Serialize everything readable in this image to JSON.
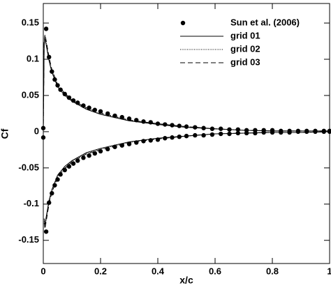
{
  "chart_data": {
    "type": "line",
    "x_label": "x/c",
    "y_label": "Cf",
    "xlim": [
      0,
      1
    ],
    "ylim": [
      -0.182,
      0.177
    ],
    "xticks": [
      0,
      0.2,
      0.4,
      0.6,
      0.8,
      1
    ],
    "yticks": [
      -0.15,
      -0.1,
      -0.05,
      0,
      0.05,
      0.1,
      0.15
    ],
    "legend": "top-right",
    "series": [
      {
        "name": "Sun et al. (2006)",
        "style": "markers",
        "color": "#000000",
        "x": [
          0,
          0.01,
          0.02,
          0.03,
          0.04,
          0.05,
          0.06,
          0.075,
          0.09,
          0.105,
          0.12,
          0.14,
          0.16,
          0.18,
          0.2,
          0.225,
          0.25,
          0.275,
          0.3,
          0.325,
          0.35,
          0.375,
          0.4,
          0.425,
          0.45,
          0.475,
          0.5,
          0.53,
          0.56,
          0.59,
          0.62,
          0.65,
          0.68,
          0.71,
          0.74,
          0.77,
          0.8,
          0.83,
          0.86,
          0.89,
          0.92,
          0.95,
          0.98,
          1,
          0,
          0.01,
          0.02,
          0.03,
          0.04,
          0.05,
          0.06,
          0.075,
          0.09,
          0.105,
          0.12,
          0.14,
          0.16,
          0.18,
          0.2,
          0.225,
          0.25,
          0.275,
          0.3,
          0.325,
          0.35,
          0.375,
          0.4,
          0.425,
          0.45,
          0.475,
          0.5,
          0.53,
          0.56,
          0.59,
          0.62,
          0.65,
          0.68,
          0.71,
          0.74,
          0.77,
          0.8,
          0.83,
          0.86,
          0.89,
          0.92,
          0.95,
          0.98,
          1
        ],
        "values": [
          0.005,
          0.142,
          0.103,
          0.083,
          0.072,
          0.064,
          0.058,
          0.052,
          0.047,
          0.043,
          0.04,
          0.036,
          0.033,
          0.03,
          0.028,
          0.025,
          0.022,
          0.02,
          0.018,
          0.016,
          0.014,
          0.013,
          0.011,
          0.01,
          0.009,
          0.008,
          0.007,
          0.006,
          0.005,
          0.004,
          0.004,
          0.003,
          0.003,
          0.002,
          0.002,
          0.002,
          0.002,
          0.001,
          0.001,
          0.001,
          0.001,
          0.001,
          0.001,
          0.001,
          -0.008,
          -0.138,
          -0.098,
          -0.085,
          -0.074,
          -0.066,
          -0.059,
          -0.053,
          -0.048,
          -0.044,
          -0.04,
          -0.036,
          -0.033,
          -0.03,
          -0.027,
          -0.024,
          -0.021,
          -0.019,
          -0.017,
          -0.015,
          -0.013,
          -0.012,
          -0.011,
          -0.009,
          -0.008,
          -0.007,
          -0.006,
          -0.005,
          -0.005,
          -0.004,
          -0.003,
          -0.003,
          -0.002,
          -0.002,
          -0.002,
          -0.001,
          -0.001,
          -0.001,
          -0.001,
          0,
          0,
          0,
          0,
          0
        ]
      },
      {
        "name": "grid 01",
        "style": "solid",
        "color": "#000000",
        "x": [
          0,
          0.003,
          0.006,
          0.01,
          0.02,
          0.03,
          0.05,
          0.075,
          0.1,
          0.15,
          0.2,
          0.3,
          0.4,
          0.5,
          0.6,
          0.7,
          0.8,
          0.9,
          1,
          null,
          0.003,
          0.006,
          0.01,
          0.02,
          0.03,
          0.05,
          0.075,
          0.1,
          0.15,
          0.2,
          0.3,
          0.4,
          0.5,
          0.6,
          0.7,
          0.8,
          0.9,
          1
        ],
        "values": [
          0,
          0.12,
          0.128,
          0.12,
          0.098,
          0.082,
          0.062,
          0.05,
          0.042,
          0.031,
          0.024,
          0.015,
          0.01,
          0.006,
          0.004,
          0.002,
          0.001,
          0.001,
          0.001,
          null,
          -0.12,
          -0.128,
          -0.118,
          -0.095,
          -0.08,
          -0.06,
          -0.048,
          -0.04,
          -0.029,
          -0.023,
          -0.014,
          -0.009,
          -0.006,
          -0.003,
          -0.002,
          -0.001,
          -0.001,
          0
        ]
      },
      {
        "name": "grid 02",
        "style": "dotted",
        "color": "#000000",
        "x": [
          0,
          0.003,
          0.006,
          0.01,
          0.02,
          0.03,
          0.05,
          0.075,
          0.1,
          0.15,
          0.2,
          0.3,
          0.4,
          0.5,
          0.6,
          0.7,
          0.8,
          0.9,
          1,
          null,
          0.003,
          0.006,
          0.01,
          0.02,
          0.03,
          0.05,
          0.075,
          0.1,
          0.15,
          0.2,
          0.3,
          0.4,
          0.5,
          0.6,
          0.7,
          0.8,
          0.9,
          1
        ],
        "values": [
          0,
          0.124,
          0.132,
          0.124,
          0.101,
          0.085,
          0.064,
          0.052,
          0.043,
          0.032,
          0.025,
          0.016,
          0.01,
          0.006,
          0.004,
          0.002,
          0.001,
          0.001,
          0.001,
          null,
          -0.124,
          -0.132,
          -0.122,
          -0.098,
          -0.083,
          -0.062,
          -0.05,
          -0.041,
          -0.03,
          -0.024,
          -0.015,
          -0.009,
          -0.006,
          -0.003,
          -0.002,
          -0.001,
          -0.001,
          0
        ]
      },
      {
        "name": "grid 03",
        "style": "dashed",
        "color": "#000000",
        "x": [
          0,
          0.003,
          0.006,
          0.01,
          0.02,
          0.03,
          0.05,
          0.075,
          0.1,
          0.15,
          0.2,
          0.3,
          0.4,
          0.5,
          0.6,
          0.7,
          0.8,
          0.9,
          1,
          null,
          0.003,
          0.006,
          0.01,
          0.02,
          0.03,
          0.05,
          0.075,
          0.1,
          0.15,
          0.2,
          0.3,
          0.4,
          0.5,
          0.6,
          0.7,
          0.8,
          0.9,
          1
        ],
        "values": [
          0,
          0.126,
          0.134,
          0.126,
          0.103,
          0.086,
          0.065,
          0.053,
          0.044,
          0.033,
          0.026,
          0.016,
          0.011,
          0.007,
          0.004,
          0.002,
          0.001,
          0.001,
          0.001,
          null,
          -0.126,
          -0.134,
          -0.124,
          -0.1,
          -0.084,
          -0.063,
          -0.051,
          -0.042,
          -0.031,
          -0.025,
          -0.015,
          -0.01,
          -0.006,
          -0.003,
          -0.002,
          -0.001,
          -0.001,
          0
        ]
      }
    ]
  }
}
